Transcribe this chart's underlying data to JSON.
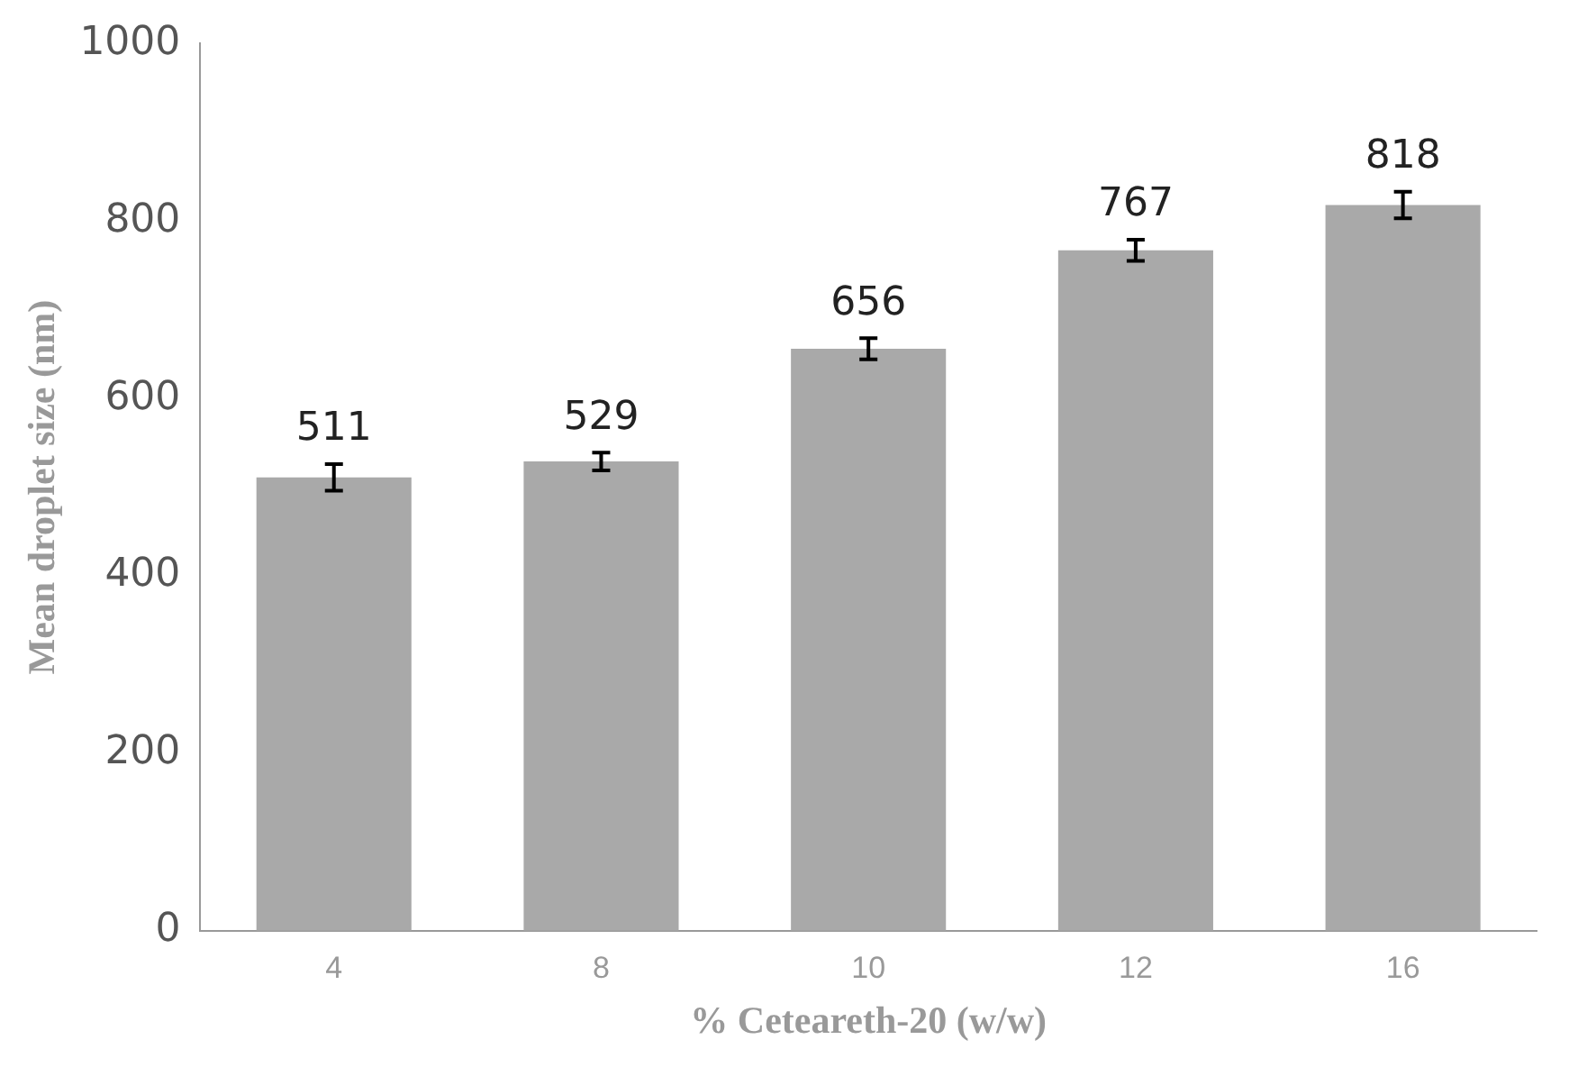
{
  "chart_data": {
    "type": "bar",
    "xlabel": "% Ceteareth-20 (w/w)",
    "ylabel": "Mean droplet size (nm)",
    "categories": [
      "4",
      "8",
      "10",
      "12",
      "16"
    ],
    "values": [
      511,
      529,
      656,
      767,
      818
    ],
    "errors": [
      15,
      10,
      12,
      12,
      15
    ],
    "color": "#a9a9a9",
    "data_labels": true,
    "ylim": [
      0,
      1000
    ],
    "yticks": [
      0,
      200,
      400,
      600,
      800,
      1000
    ],
    "grid": false,
    "legend": false
  }
}
